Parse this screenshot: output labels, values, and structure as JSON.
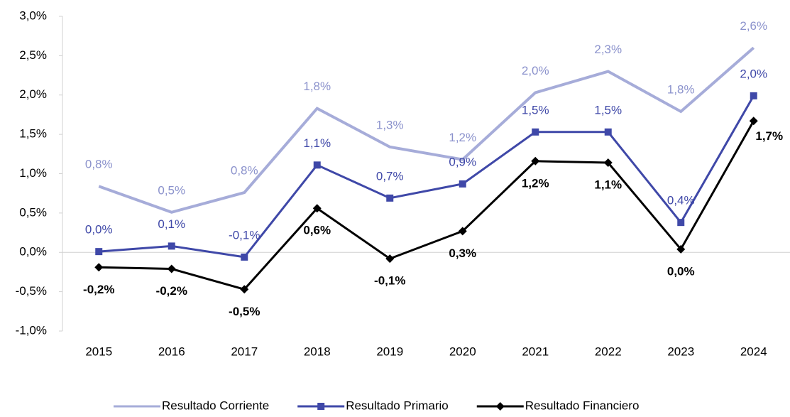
{
  "chart_data": {
    "type": "line",
    "categories": [
      "2015",
      "2016",
      "2017",
      "2018",
      "2019",
      "2020",
      "2021",
      "2022",
      "2023",
      "2024"
    ],
    "series": [
      {
        "name": "Resultado Corriente",
        "color": "#a6acd9",
        "label_color": "#8b92cc",
        "marker": "none",
        "values": [
          0.84,
          0.51,
          0.76,
          1.83,
          1.34,
          1.18,
          2.03,
          2.3,
          1.79,
          2.6
        ],
        "value_labels": [
          "0,8%",
          "0,5%",
          "0,8%",
          "1,8%",
          "1,3%",
          "1,2%",
          "2,0%",
          "2,3%",
          "1,8%",
          "2,6%"
        ]
      },
      {
        "name": "Resultado Primario",
        "color": "#3f48a8",
        "label_color": "#3f48a8",
        "marker": "square",
        "values": [
          0.01,
          0.08,
          -0.06,
          1.11,
          0.69,
          0.87,
          1.53,
          1.53,
          0.38,
          1.99
        ],
        "value_labels": [
          "0,0%",
          "0,1%",
          "-0,1%",
          "1,1%",
          "0,7%",
          "0,9%",
          "1,5%",
          "1,5%",
          "0,4%",
          "2,0%"
        ]
      },
      {
        "name": "Resultado Financiero",
        "color": "#000000",
        "label_color": "#000000",
        "marker": "diamond",
        "values": [
          -0.19,
          -0.21,
          -0.47,
          0.56,
          -0.08,
          0.27,
          1.16,
          1.14,
          0.04,
          1.67
        ],
        "value_labels": [
          "-0,2%",
          "-0,2%",
          "-0,5%",
          "0,6%",
          "-0,1%",
          "0,3%",
          "1,2%",
          "1,1%",
          "0,0%",
          "1,7%"
        ]
      }
    ],
    "ylim": [
      -1,
      3
    ],
    "yticks": [
      {
        "value": -1,
        "label": "-1,0%"
      },
      {
        "value": -0.5,
        "label": "-0,5%"
      },
      {
        "value": 0,
        "label": "0,0%"
      },
      {
        "value": 0.5,
        "label": "0,5%"
      },
      {
        "value": 1,
        "label": "1,0%"
      },
      {
        "value": 1.5,
        "label": "1,5%"
      },
      {
        "value": 2,
        "label": "2,0%"
      },
      {
        "value": 2.5,
        "label": "2,5%"
      },
      {
        "value": 3,
        "label": "3,0%"
      }
    ],
    "legend": "bottom"
  }
}
